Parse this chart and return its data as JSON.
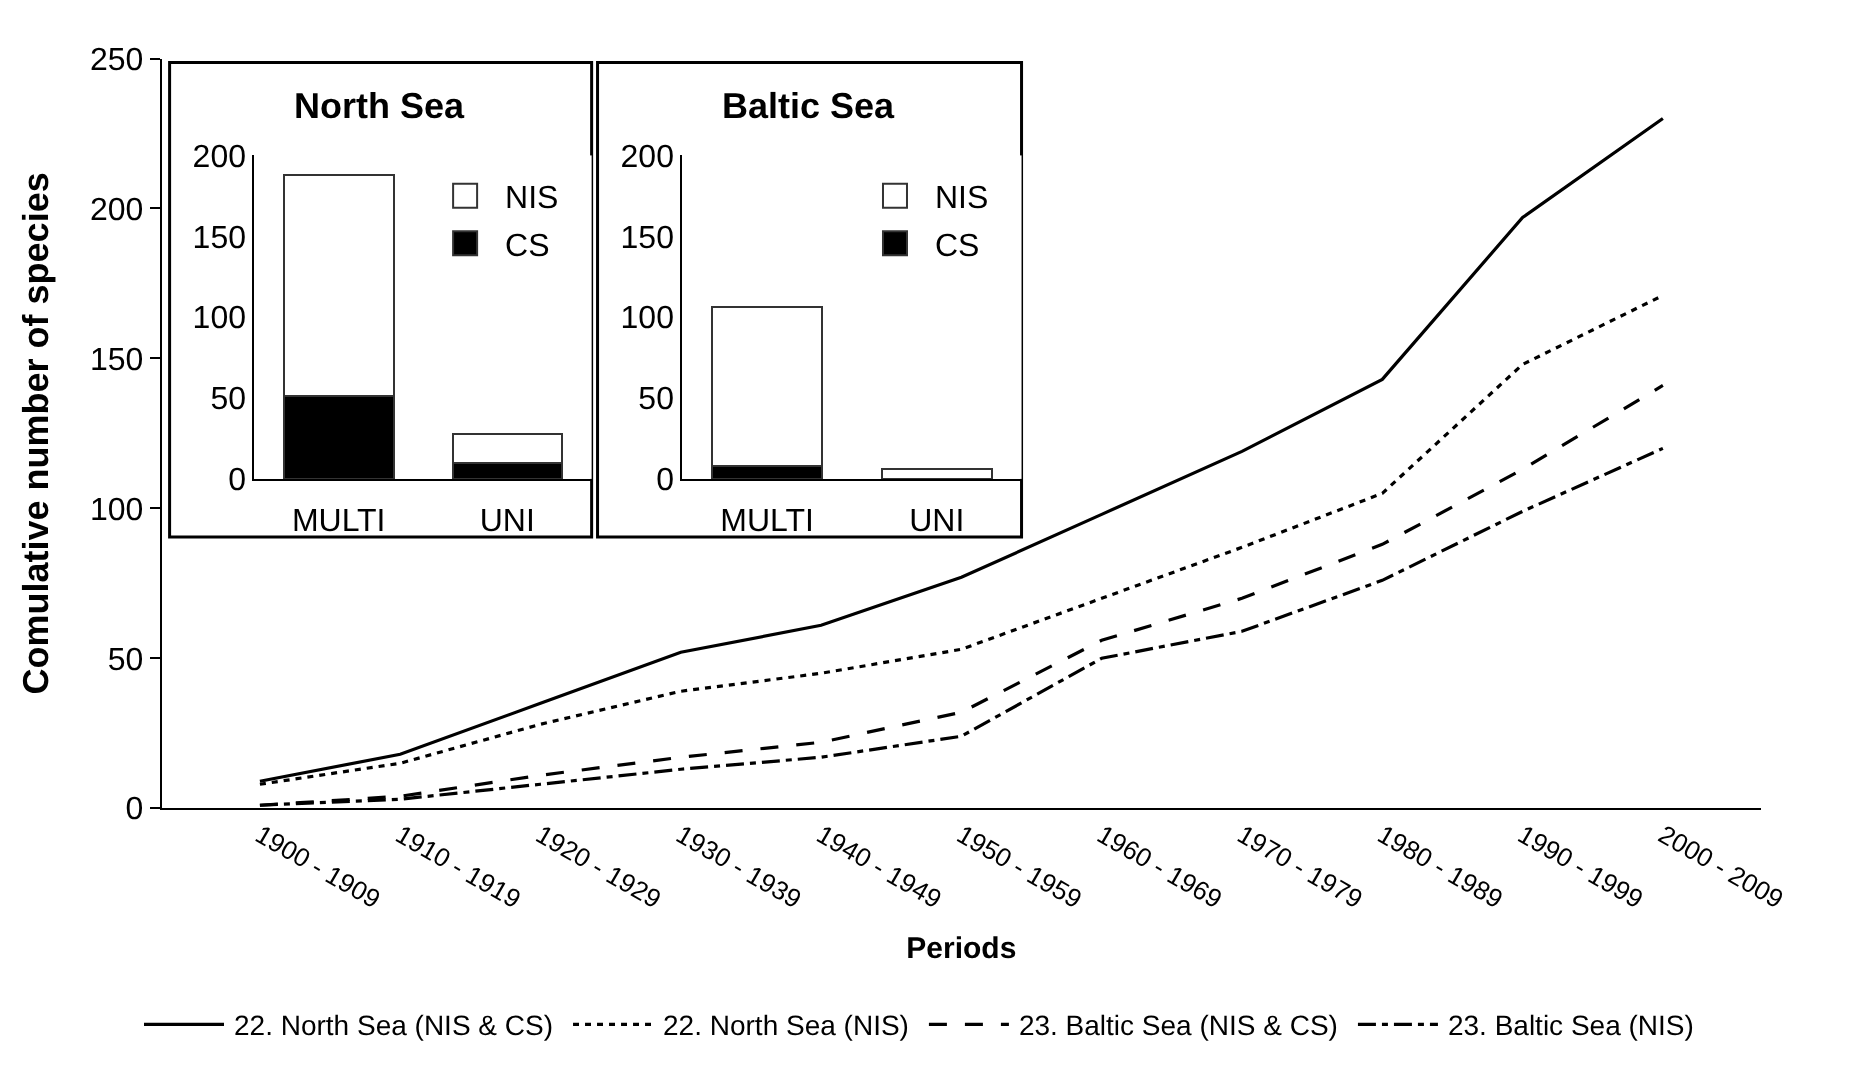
{
  "chart_data": [
    {
      "type": "line",
      "xlabel": "Periods",
      "ylabel": "Comulative number of species",
      "categories": [
        "1900 - 1909",
        "1910 - 1919",
        "1920 - 1929",
        "1930 - 1939",
        "1940 - 1949",
        "1950 - 1959",
        "1960 - 1969",
        "1970 - 1979",
        "1980 - 1989",
        "1990 - 1999",
        "2000 - 2009"
      ],
      "ylim": [
        0,
        250
      ],
      "yticks": [
        0,
        50,
        100,
        150,
        200,
        250
      ],
      "legend": "bottom",
      "series": [
        {
          "name": "22. North Sea (NIS & CS)",
          "color": "#000000",
          "line_style": "solid",
          "values": [
            9,
            18,
            35,
            52,
            61,
            77,
            98,
            119,
            143,
            197,
            230
          ]
        },
        {
          "name": "22. North Sea (NIS)",
          "color": "#000000",
          "line_style": "dotted",
          "values": [
            8,
            15,
            28,
            39,
            45,
            53,
            70,
            87,
            105,
            148,
            171
          ]
        },
        {
          "name": "23. Baltic Sea (NIS & CS)",
          "color": "#000000",
          "line_style": "dashed",
          "values": [
            1,
            4,
            11,
            17,
            22,
            32,
            56,
            70,
            88,
            113,
            141
          ]
        },
        {
          "name": "23. Baltic Sea (NIS)",
          "color": "#000000",
          "line_style": "dashdot",
          "values": [
            1,
            3,
            8,
            13,
            17,
            24,
            50,
            59,
            76,
            99,
            120
          ]
        }
      ]
    },
    {
      "type": "bar",
      "title": "North Sea",
      "categories": [
        "MULTI",
        "UNI"
      ],
      "stacked": true,
      "ylim": [
        0,
        200
      ],
      "yticks": [
        0,
        50,
        100,
        150,
        200
      ],
      "legend": "top right",
      "series": [
        {
          "name": "CS",
          "color": "#000000",
          "values": [
            51,
            10
          ]
        },
        {
          "name": "NIS",
          "color": "#ffffff",
          "values": [
            137,
            18
          ]
        }
      ]
    },
    {
      "type": "bar",
      "title": "Baltic Sea",
      "categories": [
        "MULTI",
        "UNI"
      ],
      "stacked": true,
      "ylim": [
        0,
        200
      ],
      "yticks": [
        0,
        50,
        100,
        150,
        200
      ],
      "legend": "top right",
      "series": [
        {
          "name": "CS",
          "color": "#000000",
          "values": [
            8,
            0
          ]
        },
        {
          "name": "NIS",
          "color": "#ffffff",
          "values": [
            98,
            6
          ]
        }
      ]
    }
  ]
}
